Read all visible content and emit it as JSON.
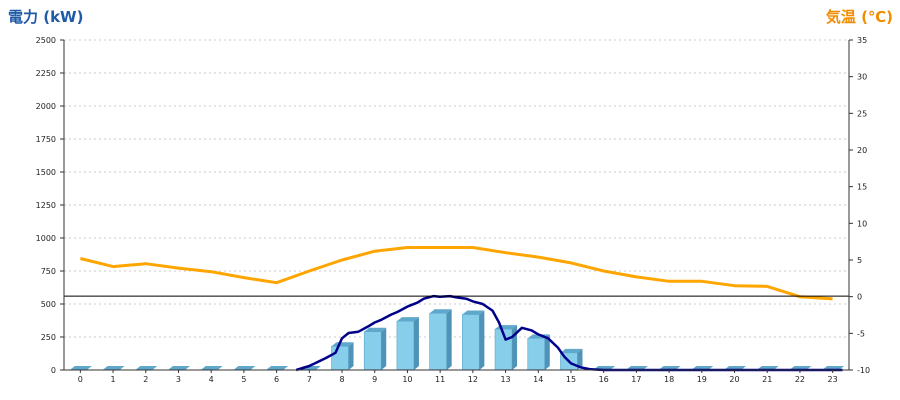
{
  "chart_data": {
    "type": "bar",
    "left_axis_title": "電力 (kW)",
    "right_axis_title": "気温 (℃)",
    "categories": [
      "0",
      "1",
      "2",
      "3",
      "4",
      "5",
      "6",
      "7",
      "8",
      "9",
      "10",
      "11",
      "12",
      "13",
      "14",
      "15",
      "16",
      "17",
      "18",
      "19",
      "20",
      "21",
      "22",
      "23"
    ],
    "ylim_left": [
      0,
      2500
    ],
    "yticks_left": [
      0,
      250,
      500,
      750,
      1000,
      1250,
      1500,
      1750,
      2000,
      2250,
      2500
    ],
    "ylim_right": [
      -10,
      35
    ],
    "yticks_right": [
      -10,
      -5,
      0,
      5,
      10,
      15,
      20,
      25,
      30,
      35
    ],
    "grid": true,
    "series": [
      {
        "axis": "left",
        "kind": "bar3d",
        "color": "#87ceeb",
        "values": [
          0,
          0,
          0,
          0,
          0,
          0,
          0,
          0,
          180,
          290,
          370,
          430,
          420,
          310,
          240,
          130,
          0,
          0,
          0,
          0,
          0,
          0,
          0,
          0
        ]
      },
      {
        "axis": "right",
        "kind": "line",
        "color": "#ffa500",
        "values": [
          5.2,
          4.1,
          4.5,
          3.9,
          3.4,
          2.6,
          1.9,
          3.5,
          5.0,
          6.2,
          6.7,
          6.7,
          6.7,
          6.0,
          5.4,
          4.6,
          3.5,
          2.7,
          2.1,
          2.1,
          1.5,
          1.4,
          0.0,
          -0.3
        ]
      },
      {
        "axis": "left",
        "kind": "line",
        "color": "#00008b",
        "x": [
          6.6,
          7.0,
          7.5,
          7.8,
          8.0,
          8.2,
          8.5,
          8.8,
          9.0,
          9.2,
          9.5,
          9.7,
          10.0,
          10.3,
          10.5,
          10.8,
          11.0,
          11.3,
          11.5,
          11.8,
          12.0,
          12.3,
          12.6,
          12.8,
          13.0,
          13.2,
          13.5,
          13.8,
          14.0,
          14.3,
          14.6,
          14.8,
          15.0,
          15.3,
          15.6,
          16.0,
          23.3
        ],
        "values": [
          0,
          30,
          90,
          130,
          240,
          280,
          290,
          330,
          360,
          380,
          420,
          440,
          480,
          510,
          540,
          560,
          555,
          560,
          550,
          540,
          520,
          500,
          450,
          360,
          230,
          250,
          320,
          300,
          270,
          240,
          170,
          100,
          50,
          20,
          5,
          0,
          0
        ]
      },
      {
        "axis": "left",
        "kind": "hline",
        "color": "#000000",
        "value": 560
      }
    ]
  }
}
